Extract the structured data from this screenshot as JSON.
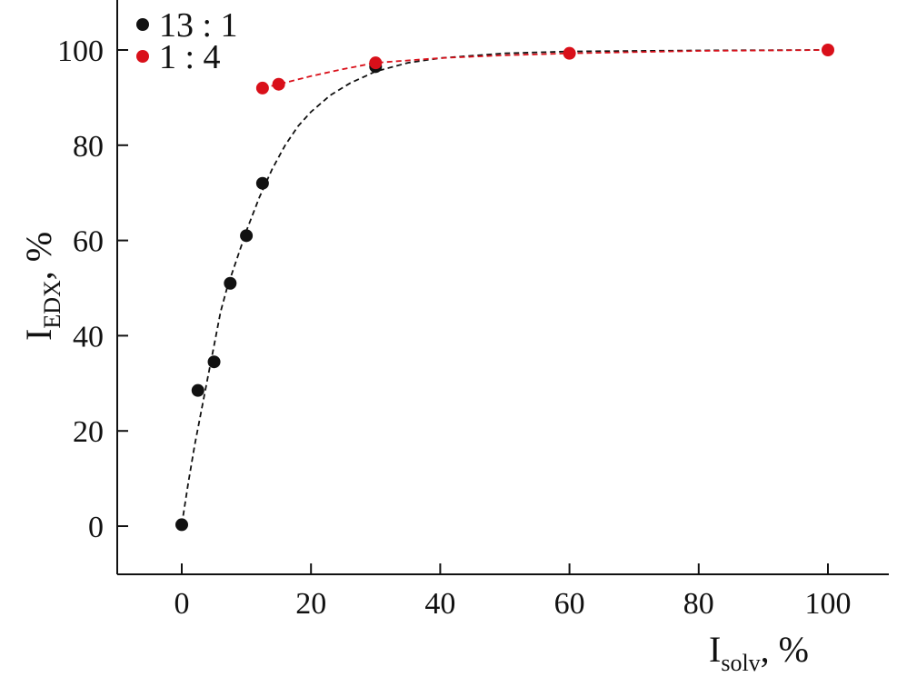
{
  "chart_data": {
    "type": "scatter",
    "title": "",
    "xlabel": {
      "main": "I",
      "sub": "solv",
      "suffix": ", %"
    },
    "ylabel": {
      "main": "I",
      "sub": "EDX",
      "suffix": ", %"
    },
    "xlim": [
      -10,
      110
    ],
    "ylim": [
      -10,
      110
    ],
    "x_ticks": [
      0,
      20,
      40,
      60,
      80,
      100
    ],
    "y_ticks": [
      0,
      20,
      40,
      60,
      80,
      100
    ],
    "grid": false,
    "legend_position": "top-left",
    "series": [
      {
        "name": "13 : 1",
        "color": "#111111",
        "points": [
          {
            "x": 0,
            "y": 0.3
          },
          {
            "x": 2.5,
            "y": 28.5
          },
          {
            "x": 5,
            "y": 34.5
          },
          {
            "x": 7.5,
            "y": 51
          },
          {
            "x": 10,
            "y": 61
          },
          {
            "x": 12.5,
            "y": 72
          },
          {
            "x": 30,
            "y": 96.5
          }
        ],
        "fit": [
          {
            "x": 0,
            "y": 0.3
          },
          {
            "x": 1,
            "y": 9
          },
          {
            "x": 2,
            "y": 17
          },
          {
            "x": 3,
            "y": 24
          },
          {
            "x": 4,
            "y": 31
          },
          {
            "x": 5,
            "y": 38
          },
          {
            "x": 6,
            "y": 45
          },
          {
            "x": 7,
            "y": 50
          },
          {
            "x": 8,
            "y": 54
          },
          {
            "x": 9,
            "y": 58
          },
          {
            "x": 10,
            "y": 62
          },
          {
            "x": 12,
            "y": 69
          },
          {
            "x": 14,
            "y": 75
          },
          {
            "x": 16,
            "y": 80
          },
          {
            "x": 18,
            "y": 84
          },
          {
            "x": 20,
            "y": 87
          },
          {
            "x": 23,
            "y": 90.5
          },
          {
            "x": 26,
            "y": 93
          },
          {
            "x": 30,
            "y": 95.5
          },
          {
            "x": 35,
            "y": 97.3
          },
          {
            "x": 40,
            "y": 98.3
          },
          {
            "x": 50,
            "y": 99.3
          },
          {
            "x": 60,
            "y": 99.7
          },
          {
            "x": 80,
            "y": 99.9
          },
          {
            "x": 100,
            "y": 100
          }
        ]
      },
      {
        "name": "1 : 4",
        "color": "#d9101a",
        "points": [
          {
            "x": 12.5,
            "y": 92
          },
          {
            "x": 15,
            "y": 92.8
          },
          {
            "x": 30,
            "y": 97.3
          },
          {
            "x": 60,
            "y": 99.3
          },
          {
            "x": 100,
            "y": 100
          }
        ],
        "fit": [
          {
            "x": 12.5,
            "y": 92
          },
          {
            "x": 15,
            "y": 92.8
          },
          {
            "x": 20,
            "y": 94.5
          },
          {
            "x": 25,
            "y": 96
          },
          {
            "x": 30,
            "y": 97.3
          },
          {
            "x": 40,
            "y": 98.3
          },
          {
            "x": 50,
            "y": 98.9
          },
          {
            "x": 60,
            "y": 99.3
          },
          {
            "x": 80,
            "y": 99.8
          },
          {
            "x": 100,
            "y": 100
          }
        ]
      }
    ]
  }
}
